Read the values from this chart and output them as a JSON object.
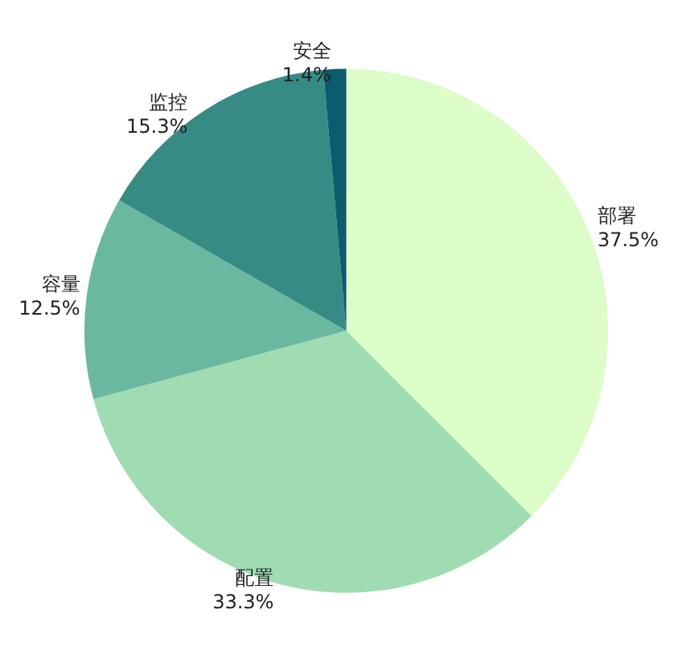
{
  "chart_data": {
    "type": "pie",
    "categories": [
      "部署",
      "配置",
      "容量",
      "监控",
      "安全"
    ],
    "values": [
      37.5,
      33.3,
      12.5,
      15.3,
      1.4
    ],
    "value_labels": [
      "37.5%",
      "33.3%",
      "12.5%",
      "15.3%",
      "1.4%"
    ],
    "colors": [
      "#dcfcc8",
      "#a0dcb2",
      "#6ab8a0",
      "#368b85",
      "#0b5c6c"
    ],
    "legend": false
  }
}
